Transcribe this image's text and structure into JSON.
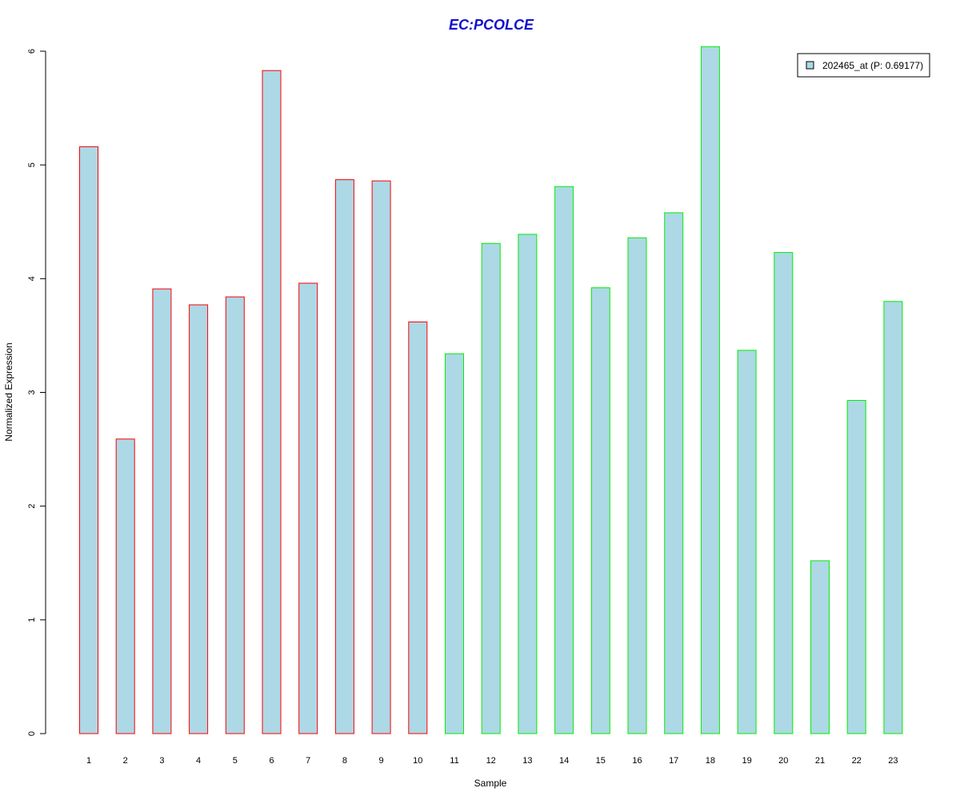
{
  "chart_data": {
    "type": "bar",
    "title": "EC:PCOLCE",
    "xlabel": "Sample",
    "ylabel": "Normalized Expression",
    "categories": [
      "1",
      "2",
      "3",
      "4",
      "5",
      "6",
      "7",
      "8",
      "9",
      "10",
      "11",
      "12",
      "13",
      "14",
      "15",
      "16",
      "17",
      "18",
      "19",
      "20",
      "21",
      "22",
      "23"
    ],
    "series": [
      {
        "name": "202465_at (P: 0.69177)",
        "values": [
          5.16,
          2.59,
          3.91,
          3.77,
          3.84,
          5.83,
          3.96,
          4.87,
          4.86,
          3.62,
          3.34,
          4.31,
          4.39,
          4.81,
          3.92,
          4.36,
          4.58,
          6.04,
          3.37,
          4.23,
          1.52,
          2.93,
          3.8
        ]
      }
    ],
    "yticks": [
      "0",
      "1",
      "2",
      "3",
      "4",
      "5",
      "6"
    ],
    "ylim": [
      0,
      6
    ],
    "grid": false,
    "legend_position": "top-right",
    "colors": {
      "title": "#1010cc",
      "bar_fill": "#add8e6",
      "group_1_border": "#ff0000",
      "group_2_border": "#00ee00",
      "axis": "#000000"
    },
    "bar_border_groups": [
      "group_1_border",
      "group_1_border",
      "group_1_border",
      "group_1_border",
      "group_1_border",
      "group_1_border",
      "group_1_border",
      "group_1_border",
      "group_1_border",
      "group_1_border",
      "group_2_border",
      "group_2_border",
      "group_2_border",
      "group_2_border",
      "group_2_border",
      "group_2_border",
      "group_2_border",
      "group_2_border",
      "group_2_border",
      "group_2_border",
      "group_2_border",
      "group_2_border",
      "group_2_border"
    ]
  }
}
